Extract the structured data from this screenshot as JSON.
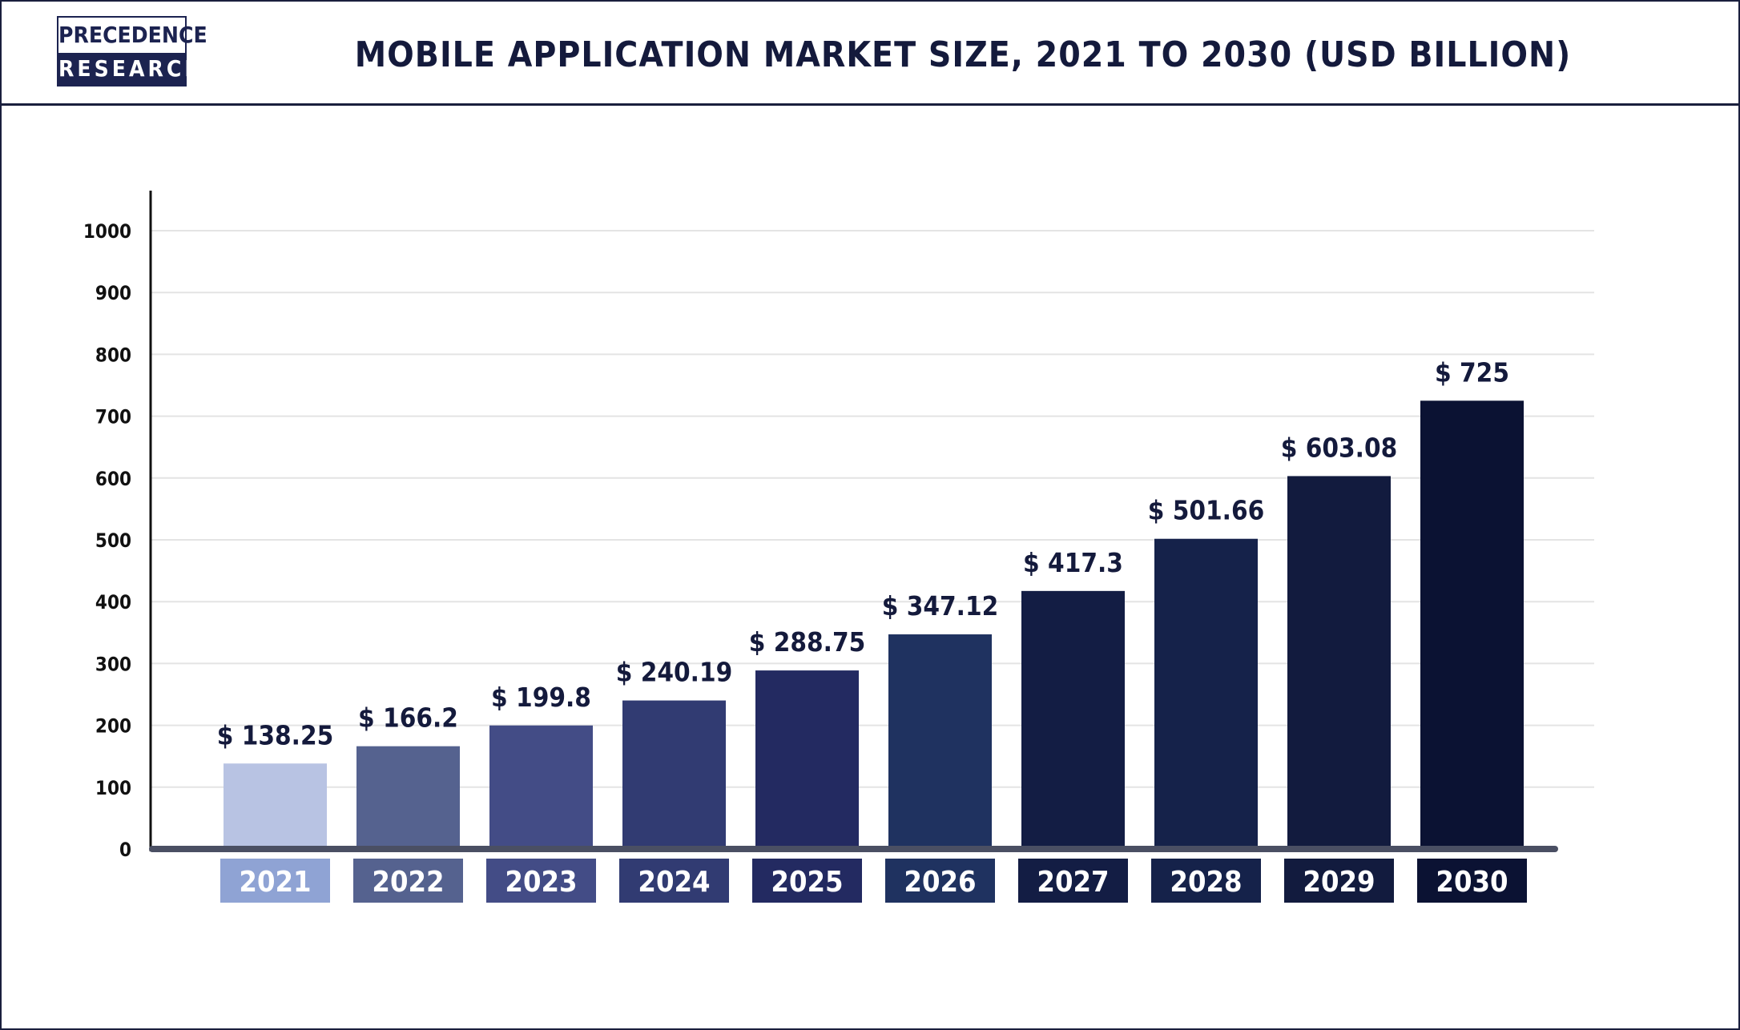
{
  "header": {
    "logo_line1": "PRECEDENCE",
    "logo_line2": "RESEARCH",
    "title": "MOBILE APPLICATION MARKET SIZE, 2021 TO 2030 (USD BILLION)"
  },
  "chart_data": {
    "type": "bar",
    "title": "MOBILE APPLICATION MARKET SIZE, 2021 TO 2030 (USD BILLION)",
    "xlabel": "",
    "ylabel": "",
    "categories": [
      "2021",
      "2022",
      "2023",
      "2024",
      "2025",
      "2026",
      "2027",
      "2028",
      "2029",
      "2030"
    ],
    "values": [
      138.25,
      166.2,
      199.8,
      240.19,
      288.75,
      347.12,
      417.3,
      501.66,
      603.08,
      725
    ],
    "value_labels": [
      "$ 138.25",
      "$ 166.2",
      "$ 199.8",
      "$ 240.19",
      "$ 288.75",
      "$ 347.12",
      "$ 417.3",
      "$ 501.66",
      "$ 603.08",
      "$ 725"
    ],
    "yticks": [
      0,
      100,
      200,
      300,
      400,
      500,
      600,
      700,
      800,
      900,
      1000
    ],
    "ylim": [
      0,
      1000
    ],
    "grid": true,
    "legend": "none",
    "bar_colors": [
      "#b8c3e3",
      "#55628f",
      "#434c86",
      "#313b72",
      "#232a61",
      "#1f3260",
      "#131d44",
      "#15224a",
      "#121b3e",
      "#0b1233"
    ],
    "label_colors": [
      "#8fa3d4",
      "#55628f",
      "#434c86",
      "#313b72",
      "#232a61",
      "#1f3260",
      "#131d44",
      "#15224a",
      "#121b3e",
      "#0b1233"
    ]
  }
}
